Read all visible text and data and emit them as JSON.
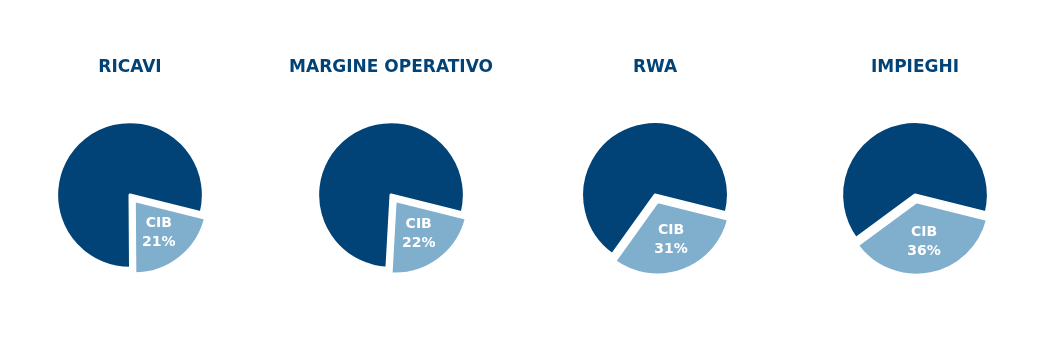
{
  "chart_data": [
    {
      "type": "pie",
      "title": "RICAVI",
      "categories": [
        "CIB",
        null
      ],
      "values": [
        21,
        79
      ],
      "colors": [
        "#80aecd",
        "#014377"
      ],
      "value_labels": [
        "21%",
        null
      ]
    },
    {
      "type": "pie",
      "title": "MARGINE OPERATIVO",
      "categories": [
        "CIB",
        null
      ],
      "values": [
        22,
        78
      ],
      "colors": [
        "#80aecd",
        "#014377"
      ],
      "value_labels": [
        "22%",
        null
      ]
    },
    {
      "type": "pie",
      "title": "RWA",
      "categories": [
        "CIB",
        null
      ],
      "values": [
        31,
        69
      ],
      "colors": [
        "#80aecd",
        "#014377"
      ],
      "value_labels": [
        "31%",
        null
      ]
    },
    {
      "type": "pie",
      "title": "IMPIEGHI",
      "categories": [
        "CIB",
        null
      ],
      "values": [
        36,
        64
      ],
      "colors": [
        "#80aecd",
        "#014377"
      ],
      "value_labels": [
        "36%",
        null
      ]
    }
  ]
}
